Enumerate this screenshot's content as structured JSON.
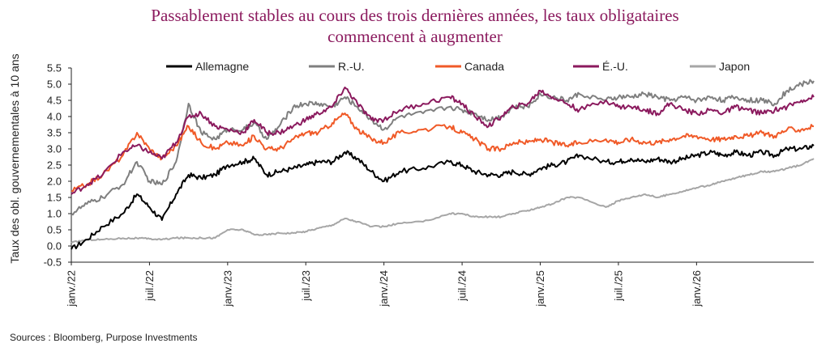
{
  "chart_data": {
    "type": "line",
    "title_lines": [
      "Passablement stables au cours des trois dernières années, les taux obligataires",
      "commencent à augmenter"
    ],
    "ylabel": "Taux des obl. gouvernementales à 10 ans",
    "xlabel": "",
    "ylim": [
      -0.5,
      5.5
    ],
    "yticks": [
      "5.5",
      "5.0",
      "4.5",
      "4.0",
      "3.5",
      "3.0",
      "2.5",
      "2.0",
      "1.5",
      "1.0",
      "0.5",
      "0.0",
      "-0.5"
    ],
    "ytick_values": [
      5.5,
      5.0,
      4.5,
      4.0,
      3.5,
      3.0,
      2.5,
      2.0,
      1.5,
      1.0,
      0.5,
      0.0,
      -0.5
    ],
    "xlim": [
      2022.0,
      2026.75
    ],
    "xticks": [
      "janv./22",
      "juil./22",
      "janv./23",
      "juil./23",
      "janv./24",
      "juil./24",
      "janv./25",
      "juil./25",
      "janv./26"
    ],
    "xtick_values": [
      2022.0,
      2022.5,
      2023.0,
      2023.5,
      2024.0,
      2024.5,
      2025.0,
      2025.5,
      2026.0
    ],
    "legend_position": "top",
    "grid": false,
    "series": [
      {
        "name": "Allemagne",
        "color": "#000000",
        "x": [
          2022.0,
          2022.1,
          2022.2,
          2022.33,
          2022.42,
          2022.5,
          2022.58,
          2022.67,
          2022.75,
          2022.83,
          2022.92,
          2023.0,
          2023.1,
          2023.17,
          2023.25,
          2023.33,
          2023.42,
          2023.5,
          2023.58,
          2023.67,
          2023.75,
          2023.83,
          2023.92,
          2024.0,
          2024.1,
          2024.25,
          2024.42,
          2024.5,
          2024.58,
          2024.67,
          2024.75,
          2024.83,
          2024.92,
          2025.0,
          2025.08,
          2025.17,
          2025.25,
          2025.42,
          2025.5,
          2025.58,
          2025.67,
          2025.75,
          2025.83,
          2025.92,
          2026.0,
          2026.1,
          2026.17,
          2026.25,
          2026.33,
          2026.42,
          2026.5,
          2026.58,
          2026.67,
          2026.75
        ],
        "values": [
          -0.1,
          0.2,
          0.6,
          1.0,
          1.6,
          1.2,
          0.8,
          1.6,
          2.2,
          2.1,
          2.2,
          2.5,
          2.6,
          2.7,
          2.2,
          2.3,
          2.4,
          2.5,
          2.6,
          2.6,
          2.9,
          2.7,
          2.3,
          2.0,
          2.3,
          2.4,
          2.6,
          2.5,
          2.3,
          2.2,
          2.2,
          2.3,
          2.2,
          2.4,
          2.5,
          2.6,
          2.8,
          2.6,
          2.6,
          2.7,
          2.6,
          2.7,
          2.6,
          2.7,
          2.8,
          2.9,
          2.8,
          2.9,
          2.8,
          2.9,
          2.8,
          3.0,
          3.0,
          3.1
        ]
      },
      {
        "name": "R.-U.",
        "color": "#7f7f7f",
        "x": [
          2022.0,
          2022.1,
          2022.2,
          2022.33,
          2022.42,
          2022.5,
          2022.58,
          2022.67,
          2022.75,
          2022.83,
          2022.92,
          2023.0,
          2023.1,
          2023.17,
          2023.25,
          2023.33,
          2023.42,
          2023.5,
          2023.58,
          2023.67,
          2023.75,
          2023.83,
          2023.92,
          2024.0,
          2024.1,
          2024.25,
          2024.42,
          2024.5,
          2024.58,
          2024.67,
          2024.75,
          2024.83,
          2024.92,
          2025.0,
          2025.08,
          2025.17,
          2025.25,
          2025.42,
          2025.5,
          2025.58,
          2025.67,
          2025.75,
          2025.83,
          2025.92,
          2026.0,
          2026.1,
          2026.17,
          2026.25,
          2026.33,
          2026.42,
          2026.5,
          2026.58,
          2026.67,
          2026.75
        ],
        "values": [
          1.0,
          1.3,
          1.5,
          1.9,
          2.6,
          2.0,
          1.9,
          2.6,
          4.4,
          3.5,
          3.3,
          3.6,
          3.6,
          3.8,
          3.3,
          3.7,
          4.3,
          4.4,
          4.4,
          4.3,
          4.6,
          4.3,
          3.9,
          3.6,
          4.0,
          4.1,
          4.3,
          4.2,
          4.1,
          3.9,
          4.0,
          4.3,
          4.3,
          4.7,
          4.6,
          4.5,
          4.7,
          4.5,
          4.6,
          4.6,
          4.7,
          4.6,
          4.5,
          4.6,
          4.5,
          4.6,
          4.5,
          4.6,
          4.5,
          4.5,
          4.4,
          4.8,
          5.0,
          5.1
        ]
      },
      {
        "name": "Canada",
        "color": "#f05a28",
        "x": [
          2022.0,
          2022.1,
          2022.2,
          2022.33,
          2022.42,
          2022.5,
          2022.58,
          2022.67,
          2022.75,
          2022.83,
          2022.92,
          2023.0,
          2023.1,
          2023.17,
          2023.25,
          2023.33,
          2023.42,
          2023.5,
          2023.58,
          2023.67,
          2023.75,
          2023.83,
          2023.92,
          2024.0,
          2024.1,
          2024.25,
          2024.42,
          2024.5,
          2024.58,
          2024.67,
          2024.75,
          2024.83,
          2024.92,
          2025.0,
          2025.08,
          2025.17,
          2025.25,
          2025.42,
          2025.5,
          2025.58,
          2025.67,
          2025.75,
          2025.83,
          2025.92,
          2026.0,
          2026.1,
          2026.17,
          2026.25,
          2026.33,
          2026.42,
          2026.5,
          2026.58,
          2026.67,
          2026.75
        ],
        "values": [
          1.7,
          1.9,
          2.2,
          2.8,
          3.5,
          3.0,
          2.7,
          3.1,
          3.7,
          3.2,
          3.0,
          3.2,
          3.1,
          3.4,
          3.0,
          3.0,
          3.3,
          3.5,
          3.5,
          3.8,
          4.1,
          3.6,
          3.3,
          3.2,
          3.5,
          3.6,
          3.7,
          3.5,
          3.3,
          3.0,
          3.0,
          3.2,
          3.2,
          3.3,
          3.2,
          3.1,
          3.2,
          3.3,
          3.2,
          3.3,
          3.2,
          3.2,
          3.3,
          3.4,
          3.4,
          3.3,
          3.3,
          3.4,
          3.4,
          3.5,
          3.4,
          3.6,
          3.6,
          3.7
        ]
      },
      {
        "name": "É.-U.",
        "color": "#8b1a5e",
        "x": [
          2022.0,
          2022.1,
          2022.2,
          2022.33,
          2022.42,
          2022.5,
          2022.58,
          2022.67,
          2022.75,
          2022.83,
          2022.92,
          2023.0,
          2023.1,
          2023.17,
          2023.25,
          2023.33,
          2023.42,
          2023.5,
          2023.58,
          2023.67,
          2023.75,
          2023.83,
          2023.92,
          2024.0,
          2024.1,
          2024.25,
          2024.42,
          2024.5,
          2024.58,
          2024.67,
          2024.75,
          2024.83,
          2024.92,
          2025.0,
          2025.08,
          2025.17,
          2025.25,
          2025.42,
          2025.5,
          2025.58,
          2025.67,
          2025.75,
          2025.83,
          2025.92,
          2026.0,
          2026.1,
          2026.17,
          2026.25,
          2026.33,
          2026.42,
          2026.5,
          2026.58,
          2026.67,
          2026.75
        ],
        "values": [
          1.6,
          1.9,
          2.2,
          2.9,
          3.1,
          2.9,
          2.7,
          3.2,
          4.0,
          4.1,
          3.7,
          3.6,
          3.5,
          3.9,
          3.5,
          3.5,
          3.7,
          3.9,
          4.1,
          4.3,
          4.9,
          4.4,
          3.9,
          3.9,
          4.2,
          4.4,
          4.6,
          4.4,
          4.0,
          3.7,
          4.0,
          4.3,
          4.4,
          4.8,
          4.6,
          4.4,
          4.2,
          4.5,
          4.3,
          4.3,
          4.2,
          4.1,
          4.4,
          4.2,
          4.1,
          4.2,
          4.1,
          4.3,
          4.2,
          4.1,
          4.2,
          4.3,
          4.5,
          4.6
        ]
      },
      {
        "name": "Japon",
        "color": "#a6a6a6",
        "x": [
          2022.0,
          2022.1,
          2022.2,
          2022.33,
          2022.42,
          2022.5,
          2022.58,
          2022.67,
          2022.75,
          2022.83,
          2022.92,
          2023.0,
          2023.1,
          2023.17,
          2023.25,
          2023.33,
          2023.42,
          2023.5,
          2023.58,
          2023.67,
          2023.75,
          2023.83,
          2023.92,
          2024.0,
          2024.1,
          2024.25,
          2024.42,
          2024.5,
          2024.58,
          2024.67,
          2024.75,
          2024.83,
          2024.92,
          2025.0,
          2025.08,
          2025.17,
          2025.25,
          2025.42,
          2025.5,
          2025.58,
          2025.67,
          2025.75,
          2025.83,
          2025.92,
          2026.0,
          2026.1,
          2026.17,
          2026.25,
          2026.33,
          2026.42,
          2026.5,
          2026.58,
          2026.67,
          2026.75
        ],
        "values": [
          0.1,
          0.2,
          0.2,
          0.24,
          0.24,
          0.22,
          0.2,
          0.25,
          0.25,
          0.25,
          0.25,
          0.5,
          0.5,
          0.35,
          0.35,
          0.4,
          0.4,
          0.45,
          0.55,
          0.65,
          0.85,
          0.75,
          0.6,
          0.6,
          0.7,
          0.75,
          1.0,
          1.0,
          0.9,
          0.9,
          0.9,
          1.0,
          1.1,
          1.2,
          1.3,
          1.5,
          1.5,
          1.2,
          1.4,
          1.5,
          1.6,
          1.5,
          1.6,
          1.7,
          1.8,
          1.9,
          2.0,
          2.1,
          2.2,
          2.3,
          2.3,
          2.4,
          2.5,
          2.7
        ]
      }
    ]
  },
  "sources": "Sources : Bloomberg, Purpose Investments"
}
